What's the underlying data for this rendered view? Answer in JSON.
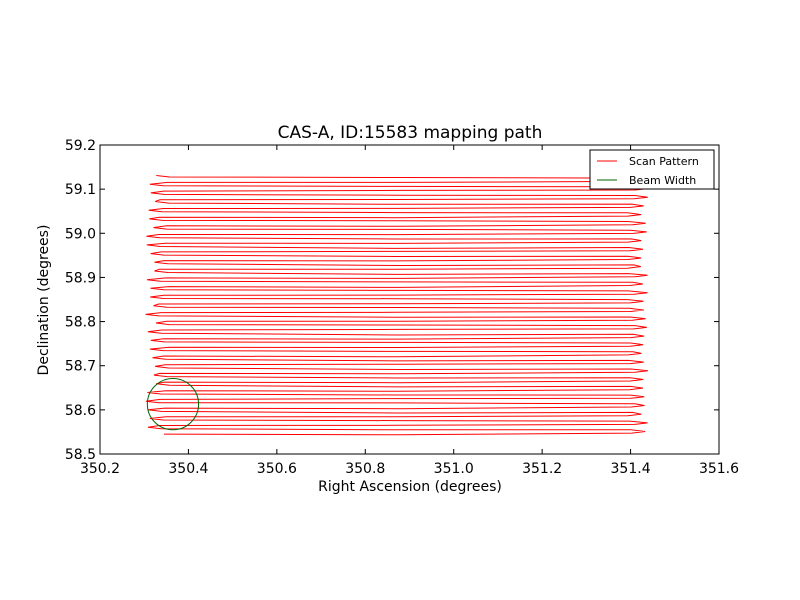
{
  "chart_data": {
    "type": "line",
    "title": "CAS-A, ID:15583 mapping path",
    "xlabel": "Right Ascension (degrees)",
    "ylabel": "Declination (degrees)",
    "xlim": [
      350.2,
      351.6
    ],
    "ylim": [
      58.5,
      59.2
    ],
    "xticks": [
      "350.2",
      "350.4",
      "350.6",
      "350.8",
      "351.0",
      "351.2",
      "351.4",
      "351.6"
    ],
    "yticks": [
      "58.5",
      "58.6",
      "58.7",
      "58.8",
      "58.9",
      "59.0",
      "59.1",
      "59.2"
    ],
    "grid": false,
    "legend_position": "top-right",
    "series": [
      {
        "name": "Scan Pattern",
        "color": "#ff0000",
        "ra_min": 350.31,
        "ra_max": 351.43,
        "dec_start": 58.545,
        "dec_end": 59.125,
        "num_rows": 60
      },
      {
        "name": "Beam Width",
        "color": "#006400",
        "center_ra": 350.365,
        "center_dec": 58.613,
        "radius_dec": 0.058
      }
    ]
  }
}
